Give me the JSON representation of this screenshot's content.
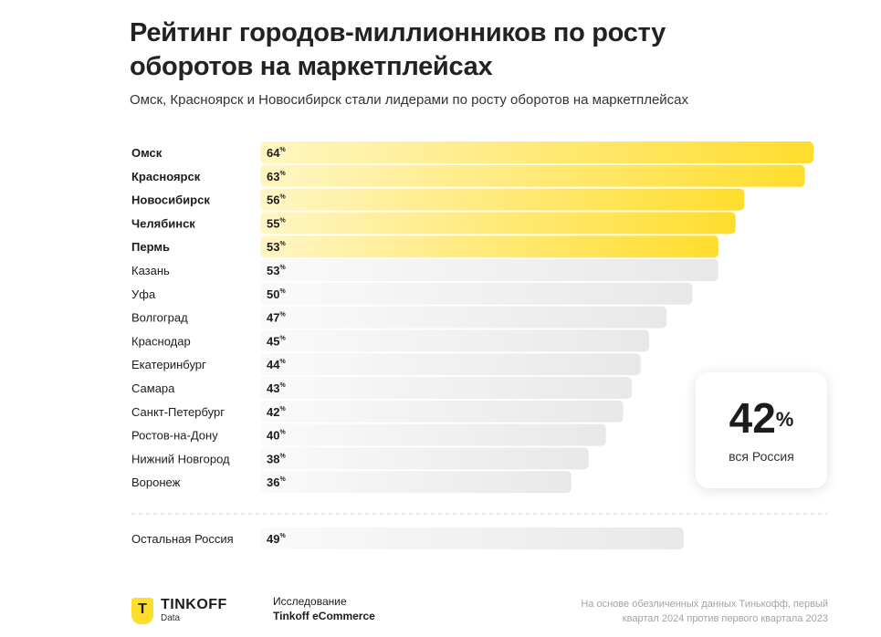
{
  "title": "Рейтинг городов-миллионников по росту оборотов на маркетплейсах",
  "subtitle": "Омск, Красноярск и Новосибирск стали лидерами по росту оборотов на маркетплейсах",
  "chart_data": {
    "type": "bar",
    "orientation": "horizontal",
    "unit": "%",
    "categories": [
      "Омск",
      "Красноярск",
      "Новосибирск",
      "Челябинск",
      "Пермь",
      "Казань",
      "Уфа",
      "Волгоград",
      "Краснодар",
      "Екатеринбург",
      "Самара",
      "Санкт-Петербург",
      "Ростов-на-Дону",
      "Нижний Новгород",
      "Воронеж"
    ],
    "values": [
      64,
      63,
      56,
      55,
      53,
      53,
      50,
      47,
      45,
      44,
      43,
      42,
      40,
      38,
      36
    ],
    "highlighted_top": 5,
    "extra_row": {
      "label": "Остальная Россия",
      "value": 49
    },
    "xlim": [
      0,
      64
    ]
  },
  "callout": {
    "value": "42",
    "unit": "%",
    "label": "вся Россия"
  },
  "colors": {
    "highlight": "#ffdd2d",
    "bar": "#e8e8e8",
    "text": "#1c1c1c"
  },
  "footer": {
    "brand": "TINKOFF",
    "brand_sub": "Data",
    "brand_letter": "T",
    "research_line1": "Исследование",
    "research_line2": "Tinkoff eCommerce",
    "note_line1": "На основе обезличенных данных Тинькофф, первый",
    "note_line2": "квартал 2024 против первого квартала 2023"
  }
}
